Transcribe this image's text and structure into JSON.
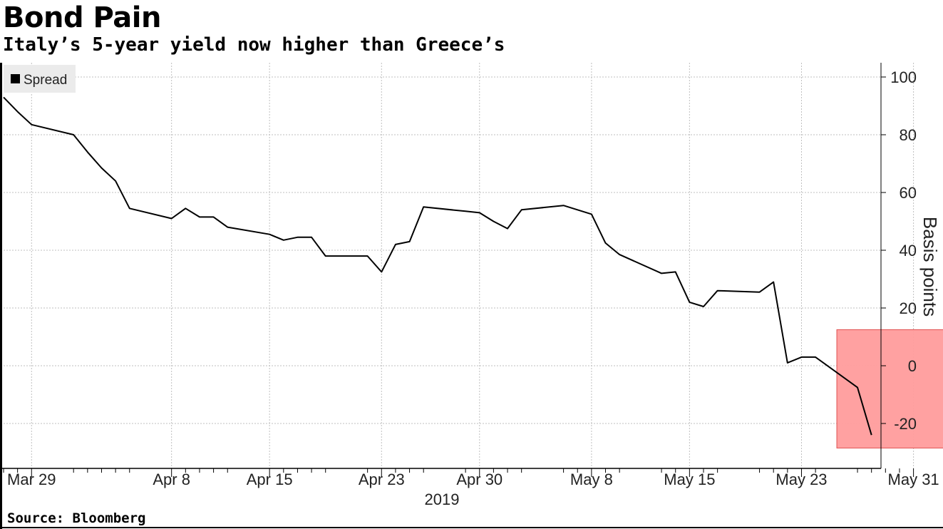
{
  "header": {
    "title": "Bond Pain",
    "subtitle": "Italy’s 5-year yield now higher than Greece’s"
  },
  "footer": {
    "source": "Source: Bloomberg"
  },
  "colors": {
    "line": "#000000",
    "grid": "#bfbfbf",
    "highlight_fill": "#ff9c9c",
    "highlight_stroke": "#e05050",
    "legend_bg": "#ebebeb"
  },
  "chart_data": {
    "type": "line",
    "ylabel": "Basis points",
    "xlabel": "2019",
    "ylim": [
      -30,
      105
    ],
    "yticks": [
      -20,
      0,
      20,
      40,
      60,
      80,
      100
    ],
    "x_tick_labels": [
      "Mar 29",
      "Apr 8",
      "Apr 15",
      "Apr 23",
      "Apr 30",
      "May 8",
      "May 15",
      "May 23",
      "May 31"
    ],
    "x_tick_dates": [
      "2019-03-29",
      "2019-04-08",
      "2019-04-15",
      "2019-04-23",
      "2019-04-30",
      "2019-05-08",
      "2019-05-15",
      "2019-05-23",
      "2019-05-31"
    ],
    "x_range": [
      "2019-03-27",
      "2019-06-01"
    ],
    "grid": true,
    "legend": {
      "position": "top-left",
      "entries": [
        "Spread"
      ]
    },
    "highlight": {
      "x_range": [
        "2019-05-27",
        "2019-06-01"
      ],
      "y_range": [
        -28.5,
        12.5
      ]
    },
    "series": [
      {
        "name": "Spread",
        "points": [
          [
            "2019-03-27",
            93.0
          ],
          [
            "2019-03-28",
            88.0
          ],
          [
            "2019-03-29",
            83.5
          ],
          [
            "2019-04-01",
            80.0
          ],
          [
            "2019-04-02",
            74.0
          ],
          [
            "2019-04-03",
            68.5
          ],
          [
            "2019-04-04",
            64.0
          ],
          [
            "2019-04-05",
            54.5
          ],
          [
            "2019-04-08",
            51.0
          ],
          [
            "2019-04-09",
            54.5
          ],
          [
            "2019-04-10",
            51.5
          ],
          [
            "2019-04-11",
            51.5
          ],
          [
            "2019-04-12",
            48.0
          ],
          [
            "2019-04-15",
            45.5
          ],
          [
            "2019-04-16",
            43.5
          ],
          [
            "2019-04-17",
            44.5
          ],
          [
            "2019-04-18",
            44.5
          ],
          [
            "2019-04-19",
            38.0
          ],
          [
            "2019-04-22",
            38.0
          ],
          [
            "2019-04-23",
            32.5
          ],
          [
            "2019-04-24",
            42.0
          ],
          [
            "2019-04-25",
            43.0
          ],
          [
            "2019-04-26",
            55.0
          ],
          [
            "2019-04-29",
            53.5
          ],
          [
            "2019-04-30",
            53.0
          ],
          [
            "2019-05-01",
            50.0
          ],
          [
            "2019-05-02",
            47.5
          ],
          [
            "2019-05-03",
            54.0
          ],
          [
            "2019-05-06",
            55.5
          ],
          [
            "2019-05-07",
            54.0
          ],
          [
            "2019-05-08",
            52.5
          ],
          [
            "2019-05-09",
            42.5
          ],
          [
            "2019-05-10",
            38.5
          ],
          [
            "2019-05-13",
            32.0
          ],
          [
            "2019-05-14",
            32.5
          ],
          [
            "2019-05-15",
            22.0
          ],
          [
            "2019-05-16",
            20.5
          ],
          [
            "2019-05-17",
            26.0
          ],
          [
            "2019-05-20",
            25.5
          ],
          [
            "2019-05-21",
            29.0
          ],
          [
            "2019-05-22",
            1.0
          ],
          [
            "2019-05-23",
            3.0
          ],
          [
            "2019-05-24",
            3.0
          ],
          [
            "2019-05-27",
            -7.5
          ],
          [
            "2019-05-28",
            -24.0
          ]
        ]
      }
    ]
  }
}
